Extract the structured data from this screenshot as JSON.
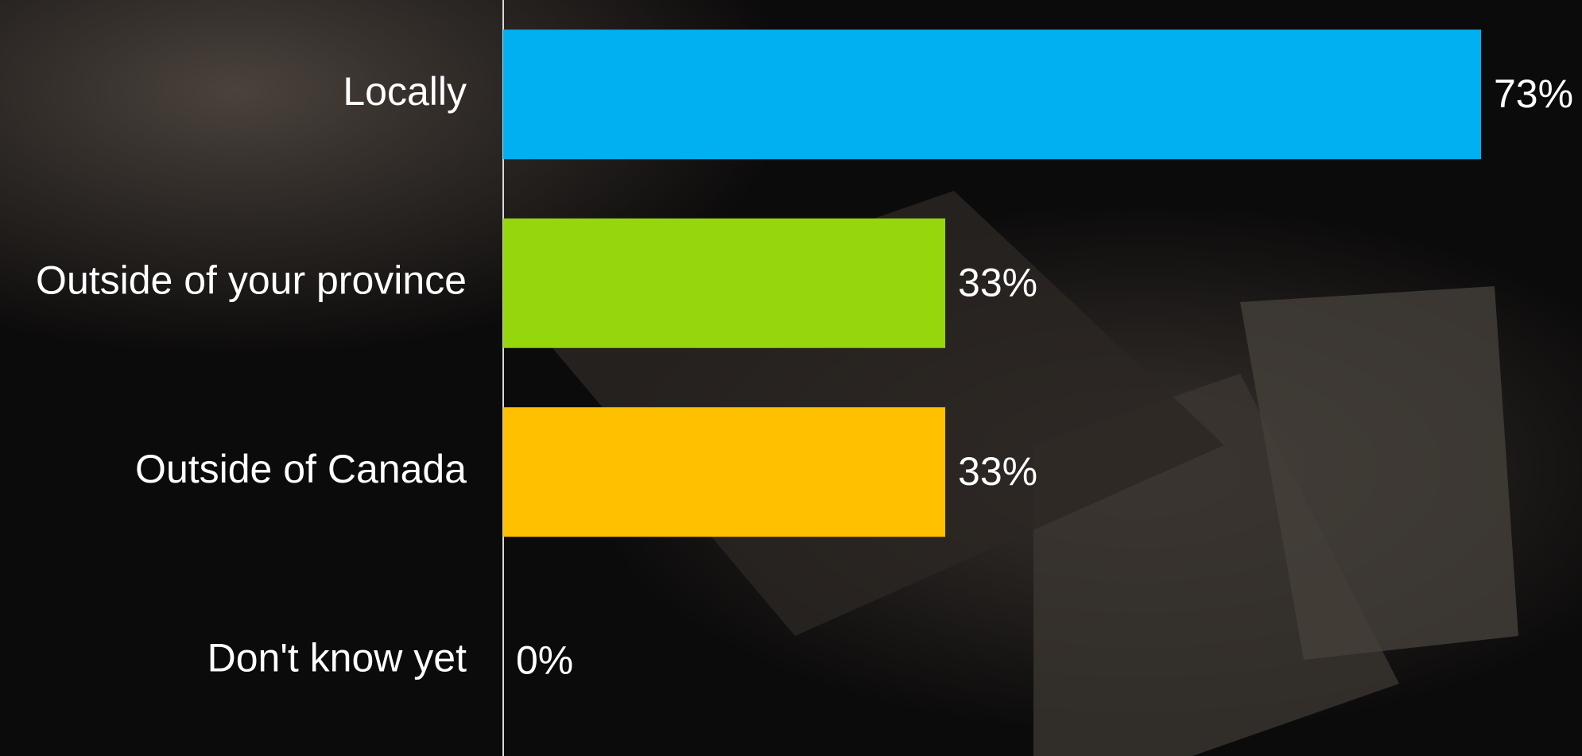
{
  "chart_data": {
    "type": "bar",
    "orientation": "horizontal",
    "categories": [
      "Locally",
      "Outside of your province",
      "Outside of Canada",
      "Don't know yet"
    ],
    "values": [
      73,
      33,
      33,
      0
    ],
    "value_labels": [
      "73%",
      "33%",
      "33%",
      "0%"
    ],
    "colors": [
      "#00b0f0",
      "#96d60c",
      "#ffc000",
      "#7f7f7f"
    ]
  }
}
